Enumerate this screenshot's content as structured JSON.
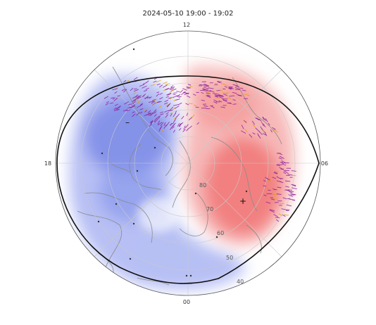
{
  "title": "2024-05-10 19:00 - 19:02",
  "mlt_labels": {
    "top": "12",
    "bottom": "00",
    "left": "18",
    "right": "06"
  },
  "latitude_labels": [
    "80",
    "70",
    "60",
    "50",
    "40"
  ],
  "colors": {
    "positive": "#f26b6b",
    "negative": "#6f7de6",
    "vector": "#8a1f9c",
    "vector_alt": "#e0a100",
    "coast": "#8a8a8a",
    "grid": "#bdbdbd",
    "terminator": "#111111"
  },
  "markers": {
    "max": "+",
    "min": "–"
  }
}
